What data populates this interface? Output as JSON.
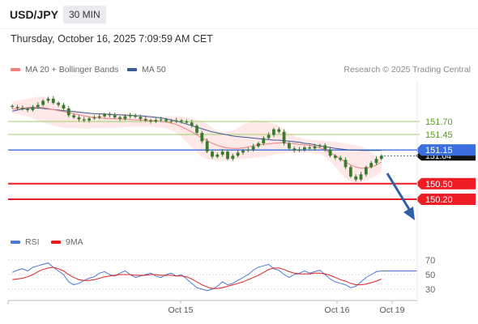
{
  "header": {
    "symbol": "USD/JPY",
    "timeframe": "30 MIN",
    "datetime": "Thursday, October 16, 2025 7:09:59 AM CET"
  },
  "legend": {
    "ma20": "MA 20 + Bollinger Bands",
    "ma50": "MA 50",
    "rsi": "RSI",
    "rsi_ma": "9MA",
    "copyright": "Research © 2025 Trading Central"
  },
  "colors": {
    "ma20": "#f08080",
    "bollinger_fill": "#fde0e0",
    "ma50": "#3c5a96",
    "candle": "#3a7a2e",
    "resistance": "#9fd06a",
    "pivot": "#3b6fe0",
    "support": "#ee1c25",
    "rsi": "#4a78d8",
    "rsi_ma": "#e02020",
    "current_price": "#111111"
  },
  "chart_data": {
    "type": "candlestick",
    "x_labels": [
      "Oct 15",
      "Oct 16",
      "Oct 19"
    ],
    "y_range": [
      150.12,
      151.94
    ],
    "current_price": "151.04",
    "levels": [
      {
        "label": "151.70",
        "value": 151.7,
        "kind": "resistance"
      },
      {
        "label": "151.45",
        "value": 151.45,
        "kind": "resistance"
      },
      {
        "label": "151.15",
        "value": 151.15,
        "kind": "pivot"
      },
      {
        "label": "150.50",
        "value": 150.5,
        "kind": "support"
      },
      {
        "label": "150.20",
        "value": 150.2,
        "kind": "support"
      }
    ],
    "price_close": [
      151.98,
      151.96,
      151.94,
      151.92,
      151.98,
      152.02,
      152.1,
      152.14,
      152.06,
      152.02,
      151.95,
      151.82,
      151.78,
      151.74,
      151.72,
      151.76,
      151.78,
      151.8,
      151.84,
      151.82,
      151.78,
      151.75,
      151.8,
      151.82,
      151.79,
      151.75,
      151.72,
      151.7,
      151.73,
      151.74,
      151.71,
      151.7,
      151.72,
      151.7,
      151.68,
      151.62,
      151.48,
      151.32,
      151.12,
      151.02,
      151.06,
      151.12,
      150.98,
      151.04,
      151.1,
      151.14,
      151.16,
      151.22,
      151.28,
      151.38,
      151.44,
      151.55,
      151.5,
      151.28,
      151.18,
      151.14,
      151.16,
      151.2,
      151.18,
      151.22,
      151.24,
      151.16,
      151.04,
      151.0,
      150.96,
      150.82,
      150.64,
      150.58,
      150.68,
      150.82,
      150.9,
      150.98,
      151.04
    ],
    "ma20": [
      151.94,
      151.95,
      151.96,
      151.97,
      151.98,
      151.98,
      151.97,
      151.95,
      151.93,
      151.91,
      151.89,
      151.87,
      151.85,
      151.83,
      151.81,
      151.79,
      151.78,
      151.77,
      151.76,
      151.76,
      151.75,
      151.75,
      151.74,
      151.74,
      151.73,
      151.73,
      151.72,
      151.72,
      151.71,
      151.7,
      151.69,
      151.67,
      151.64,
      151.6,
      151.55,
      151.5,
      151.44,
      151.38,
      151.33,
      151.28,
      151.24,
      151.21,
      151.19,
      151.18,
      151.18,
      151.19,
      151.21,
      151.23,
      151.25,
      151.26,
      151.27,
      151.28,
      151.29,
      151.29,
      151.28,
      151.27,
      151.26,
      151.25,
      151.24,
      151.22,
      151.19,
      151.15,
      151.1,
      151.04,
      150.98,
      150.92,
      150.86,
      150.82,
      150.8,
      150.8,
      150.82,
      150.86,
      150.92
    ],
    "bollinger_upper": [
      152.08,
      152.1,
      152.12,
      152.14,
      152.16,
      152.18,
      152.18,
      152.16,
      152.12,
      152.06,
      151.99,
      151.95,
      151.92,
      151.9,
      151.88,
      151.86,
      151.86,
      151.86,
      151.86,
      151.86,
      151.86,
      151.86,
      151.86,
      151.86,
      151.85,
      151.84,
      151.83,
      151.82,
      151.81,
      151.8,
      151.8,
      151.8,
      151.8,
      151.8,
      151.78,
      151.76,
      151.74,
      151.71,
      151.66,
      151.58,
      151.52,
      151.5,
      151.5,
      151.52,
      151.58,
      151.64,
      151.68,
      151.72,
      151.72,
      151.7,
      151.68,
      151.66,
      151.62,
      151.55,
      151.48,
      151.42,
      151.38,
      151.36,
      151.35,
      151.34,
      151.33,
      151.32,
      151.31,
      151.3,
      151.29,
      151.28,
      151.26,
      151.24,
      151.22,
      151.18,
      151.1,
      151.04,
      151.02
    ],
    "bollinger_lower": [
      151.86,
      151.84,
      151.82,
      151.8,
      151.76,
      151.72,
      151.68,
      151.65,
      151.62,
      151.6,
      151.58,
      151.57,
      151.57,
      151.57,
      151.56,
      151.56,
      151.57,
      151.57,
      151.58,
      151.58,
      151.58,
      151.58,
      151.59,
      151.6,
      151.6,
      151.6,
      151.6,
      151.6,
      151.59,
      151.58,
      151.57,
      151.54,
      151.48,
      151.4,
      151.3,
      151.2,
      151.1,
      151.02,
      150.98,
      150.96,
      150.94,
      150.94,
      150.95,
      150.96,
      150.97,
      150.98,
      150.99,
      151.0,
      151.01,
      151.02,
      151.04,
      151.06,
      151.08,
      151.09,
      151.1,
      151.1,
      151.1,
      151.1,
      151.1,
      151.09,
      151.07,
      151.02,
      150.94,
      150.82,
      150.7,
      150.6,
      150.54,
      150.52,
      150.54,
      150.56,
      150.6,
      150.66,
      150.72
    ],
    "ma50": [
      151.9,
      151.92,
      151.94,
      151.95,
      151.96,
      151.96,
      151.95,
      151.94,
      151.93,
      151.92,
      151.91,
      151.9,
      151.89,
      151.88,
      151.87,
      151.86,
      151.85,
      151.85,
      151.84,
      151.84,
      151.83,
      151.83,
      151.82,
      151.82,
      151.81,
      151.81,
      151.8,
      151.79,
      151.78,
      151.77,
      151.75,
      151.73,
      151.71,
      151.68,
      151.65,
      151.62,
      151.59,
      151.56,
      151.53,
      151.5,
      151.48,
      151.46,
      151.44,
      151.42,
      151.41,
      151.4,
      151.39,
      151.38,
      151.37,
      151.36,
      151.35,
      151.34,
      151.34,
      151.33,
      151.32,
      151.31,
      151.3,
      151.28,
      151.27,
      151.25,
      151.23,
      151.21,
      151.2,
      151.18,
      151.17,
      151.16,
      151.15,
      151.15,
      151.14,
      151.14,
      151.14,
      151.14,
      151.14
    ],
    "rsi": {
      "ticks": [
        "70",
        "50",
        "30"
      ],
      "range": [
        20,
        80
      ],
      "rsi": [
        53,
        56,
        58,
        55,
        60,
        62,
        64,
        66,
        60,
        55,
        50,
        40,
        36,
        38,
        42,
        45,
        47,
        52,
        54,
        50,
        48,
        52,
        55,
        50,
        46,
        48,
        50,
        52,
        48,
        46,
        50,
        52,
        48,
        50,
        44,
        38,
        32,
        30,
        28,
        30,
        34,
        40,
        36,
        38,
        42,
        46,
        50,
        56,
        60,
        62,
        64,
        58,
        56,
        50,
        46,
        50,
        52,
        55,
        52,
        54,
        56,
        50,
        44,
        40,
        38,
        36,
        32,
        34,
        40,
        46,
        50,
        54,
        55
      ],
      "ma9": [
        43,
        44,
        45,
        47,
        50,
        54,
        57,
        59,
        60,
        58,
        55,
        50,
        46,
        43,
        42,
        42,
        43,
        45,
        47,
        48,
        49,
        50,
        50,
        50,
        49,
        49,
        49,
        50,
        50,
        49,
        49,
        49,
        48,
        48,
        47,
        44,
        40,
        36,
        33,
        31,
        31,
        32,
        34,
        36,
        38,
        40,
        43,
        46,
        49,
        53,
        57,
        59,
        59,
        57,
        54,
        52,
        51,
        51,
        51,
        52,
        52,
        51,
        49,
        46,
        43,
        41,
        38,
        36,
        36,
        37,
        39,
        41,
        44
      ]
    }
  }
}
